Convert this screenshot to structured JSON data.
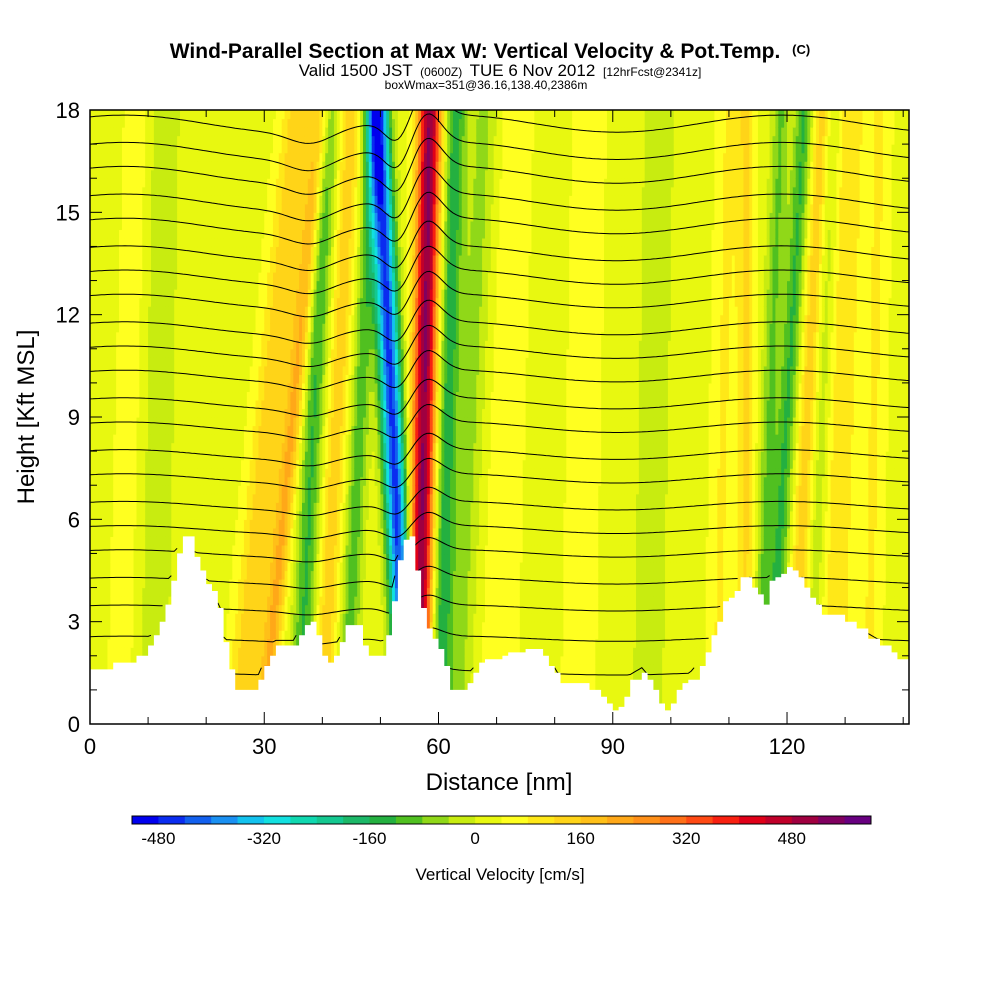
{
  "header": {
    "title_main": "Wind-Parallel Section at Max W: Vertical Velocity & Pot.Temp.",
    "title_mark": "(C)",
    "valid_part1": "Valid 1500 JST",
    "valid_small1": "(0600Z)",
    "valid_part2": "TUE 6 Nov 2012",
    "valid_small2": "[12hrFcst@2341z]",
    "box_info": "boxWmax=351@36.16,138.40,2386m"
  },
  "chart_data": {
    "type": "heatmap",
    "title": "Wind-Parallel Section at Max W: Vertical Velocity & Pot.Temp.",
    "xlabel": "Distance [nm]",
    "ylabel": "Height [Kft MSL]",
    "xlim": [
      0,
      141
    ],
    "ylim": [
      0,
      18
    ],
    "x_ticks": [
      0,
      30,
      60,
      90,
      120
    ],
    "y_ticks": [
      0,
      3,
      6,
      9,
      12,
      15,
      18
    ],
    "colorbar": {
      "label": "Vertical Velocity [cm/s]",
      "tick_values": [
        -480,
        -320,
        -160,
        0,
        160,
        320,
        480
      ],
      "levels": [
        -520,
        -480,
        -440,
        -400,
        -360,
        -320,
        -280,
        -240,
        -200,
        -160,
        -120,
        -80,
        -40,
        0,
        40,
        80,
        120,
        160,
        200,
        240,
        280,
        320,
        360,
        400,
        440,
        480,
        520,
        560
      ],
      "colors": [
        "#0000ee",
        "#0a2cf0",
        "#1260ee",
        "#1a90f2",
        "#13c2ee",
        "#12e0e0",
        "#10d8b0",
        "#14c890",
        "#1cb868",
        "#24b040",
        "#50c020",
        "#90d818",
        "#c8ec10",
        "#e8f810",
        "#ffff20",
        "#ffe818",
        "#ffd418",
        "#ffc018",
        "#ffa818",
        "#ff9018",
        "#ff7018",
        "#ff4a14",
        "#f82010",
        "#e00018",
        "#c0002a",
        "#a00040",
        "#800060",
        "#680080"
      ]
    },
    "terrain_kft": [
      [
        0,
        1.6
      ],
      [
        4,
        1.6
      ],
      [
        4,
        1.8
      ],
      [
        8,
        1.8
      ],
      [
        8,
        2.0
      ],
      [
        10,
        2.0
      ],
      [
        10,
        2.3
      ],
      [
        11,
        2.6
      ],
      [
        12,
        3.0
      ],
      [
        13,
        3.5
      ],
      [
        14,
        4.2
      ],
      [
        15,
        5.0
      ],
      [
        16,
        5.5
      ],
      [
        17,
        5.5
      ],
      [
        18,
        4.9
      ],
      [
        19,
        4.5
      ],
      [
        20,
        4.1
      ],
      [
        21,
        3.9
      ],
      [
        22,
        3.4
      ],
      [
        23,
        2.4
      ],
      [
        24,
        1.6
      ],
      [
        25,
        1.0
      ],
      [
        28,
        1.0
      ],
      [
        29,
        1.3
      ],
      [
        30,
        1.7
      ],
      [
        31,
        2.0
      ],
      [
        32,
        2.3
      ],
      [
        35,
        2.3
      ],
      [
        36,
        2.6
      ],
      [
        37,
        2.9
      ],
      [
        38,
        3.0
      ],
      [
        39,
        2.6
      ],
      [
        40,
        2.0
      ],
      [
        41,
        1.8
      ],
      [
        42,
        2.0
      ],
      [
        43,
        2.4
      ],
      [
        44,
        2.9
      ],
      [
        46,
        2.9
      ],
      [
        47,
        2.3
      ],
      [
        48,
        2.0
      ],
      [
        50,
        2.0
      ],
      [
        51,
        2.6
      ],
      [
        52,
        3.6
      ],
      [
        53,
        4.8
      ],
      [
        54,
        5.4
      ],
      [
        55,
        5.5
      ],
      [
        56,
        4.5
      ],
      [
        57,
        3.4
      ],
      [
        58,
        2.8
      ],
      [
        59,
        2.5
      ],
      [
        60,
        2.2
      ],
      [
        61,
        1.7
      ],
      [
        62,
        1.0
      ],
      [
        64,
        1.0
      ],
      [
        65,
        1.2
      ],
      [
        66,
        1.5
      ],
      [
        67,
        1.8
      ],
      [
        68,
        1.9
      ],
      [
        71,
        2.0
      ],
      [
        72,
        2.1
      ],
      [
        75,
        2.2
      ],
      [
        78,
        2.0
      ],
      [
        79,
        1.7
      ],
      [
        80,
        1.5
      ],
      [
        81,
        1.2
      ],
      [
        82,
        1.2
      ],
      [
        84,
        1.2
      ],
      [
        86,
        1.0
      ],
      [
        88,
        0.8
      ],
      [
        89,
        0.6
      ],
      [
        90,
        0.4
      ],
      [
        91,
        0.5
      ],
      [
        92,
        0.8
      ],
      [
        93,
        1.3
      ],
      [
        95,
        1.5
      ],
      [
        96,
        1.3
      ],
      [
        97,
        1.0
      ],
      [
        98,
        0.6
      ],
      [
        99,
        0.4
      ],
      [
        100,
        0.6
      ],
      [
        101,
        1.0
      ],
      [
        102,
        1.2
      ],
      [
        103,
        1.3
      ],
      [
        105,
        1.7
      ],
      [
        106,
        2.1
      ],
      [
        107,
        2.6
      ],
      [
        108,
        3.0
      ],
      [
        109,
        3.6
      ],
      [
        110,
        3.7
      ],
      [
        111,
        3.9
      ],
      [
        112,
        4.3
      ],
      [
        113,
        4.3
      ],
      [
        114,
        4.0
      ],
      [
        115,
        3.8
      ],
      [
        116,
        3.5
      ],
      [
        117,
        4.2
      ],
      [
        118,
        4.3
      ],
      [
        119,
        4.4
      ],
      [
        120,
        4.6
      ],
      [
        121,
        4.5
      ],
      [
        122,
        4.3
      ],
      [
        123,
        4.0
      ],
      [
        124,
        3.7
      ],
      [
        125,
        3.5
      ],
      [
        126,
        3.2
      ],
      [
        130,
        3.0
      ],
      [
        132,
        2.8
      ],
      [
        134,
        2.5
      ],
      [
        136,
        2.3
      ],
      [
        138,
        2.1
      ],
      [
        139,
        1.9
      ],
      [
        141,
        1.9
      ]
    ],
    "w_bands_cm_s": [
      {
        "x_bottom": 5,
        "x_top": 8,
        "half_width_nm": 2.2,
        "peak": 40
      },
      {
        "x_bottom": 11,
        "x_top": 13,
        "half_width_nm": 2.5,
        "peak": -60
      },
      {
        "x_bottom": 26,
        "x_top": 36,
        "half_width_nm": 2.8,
        "peak": 130
      },
      {
        "x_bottom": 30,
        "x_top": 40,
        "half_width_nm": 1.6,
        "peak": 170
      },
      {
        "x_bottom": 36,
        "x_top": 41,
        "half_width_nm": 1.8,
        "peak": -150
      },
      {
        "x_bottom": 40,
        "x_top": 45,
        "half_width_nm": 1.8,
        "peak": 120
      },
      {
        "x_bottom": 44,
        "x_top": 49,
        "half_width_nm": 1.6,
        "peak": -130
      },
      {
        "x_bottom": 54.5,
        "x_top": 49.5,
        "half_width_nm": 1.9,
        "peak": -480
      },
      {
        "x_bottom": 56.5,
        "x_top": 58.5,
        "half_width_nm": 2.0,
        "peak": 500
      },
      {
        "x_bottom": 60,
        "x_top": 63,
        "half_width_nm": 1.8,
        "peak": -170
      },
      {
        "x_bottom": 63,
        "x_top": 68,
        "half_width_nm": 2.5,
        "peak": -80
      },
      {
        "x_bottom": 70,
        "x_top": 73,
        "half_width_nm": 3.5,
        "peak": 40
      },
      {
        "x_bottom": 84,
        "x_top": 86,
        "half_width_nm": 3.0,
        "peak": 40
      },
      {
        "x_bottom": 96,
        "x_top": 98,
        "half_width_nm": 3.0,
        "peak": -50
      },
      {
        "x_bottom": 108,
        "x_top": 110,
        "half_width_nm": 2.0,
        "peak": 60
      },
      {
        "x_bottom": 113,
        "x_top": 113,
        "half_width_nm": 1.6,
        "peak": 100
      },
      {
        "x_bottom": 115,
        "x_top": 119,
        "half_width_nm": 1.5,
        "peak": -110
      },
      {
        "x_bottom": 117,
        "x_top": 123,
        "half_width_nm": 1.6,
        "peak": -150
      },
      {
        "x_bottom": 121,
        "x_top": 126,
        "half_width_nm": 1.6,
        "peak": 120
      },
      {
        "x_bottom": 124,
        "x_top": 128,
        "half_width_nm": 1.4,
        "peak": -60
      },
      {
        "x_bottom": 128,
        "x_top": 131,
        "half_width_nm": 2.5,
        "peak": 90
      },
      {
        "x_bottom": 134,
        "x_top": 136,
        "half_width_nm": 2.0,
        "peak": 60
      }
    ],
    "theta_isolines_kft": [
      1.5,
      2.5,
      3.4,
      4.2,
      5.0,
      5.7,
      6.4,
      7.2,
      7.9,
      8.7,
      9.4,
      10.2,
      10.9,
      11.6,
      12.4,
      13.1,
      13.8,
      14.6,
      15.3,
      16.1,
      16.8,
      17.6
    ]
  }
}
